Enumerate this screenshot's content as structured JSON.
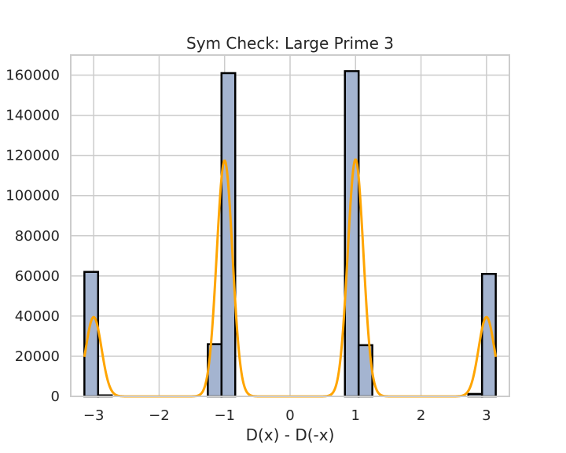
{
  "chart_data": {
    "type": "bar",
    "title": "Sym Check: Large Prime 3",
    "xlabel": "D(x) - D(-x)",
    "ylabel": "",
    "xlim": [
      -3.35,
      3.35
    ],
    "ylim": [
      0,
      170000
    ],
    "x_ticks": [
      -3,
      -2,
      -1,
      0,
      1,
      2,
      3
    ],
    "x_tick_labels": [
      "−3",
      "−2",
      "−1",
      "0",
      "1",
      "2",
      "3"
    ],
    "y_ticks": [
      0,
      20000,
      40000,
      60000,
      80000,
      100000,
      120000,
      140000,
      160000
    ],
    "y_tick_labels": [
      "0",
      "20000",
      "40000",
      "60000",
      "80000",
      "100000",
      "120000",
      "140000",
      "160000"
    ],
    "grid": true,
    "colors": {
      "bar_fill": "#a4b4d0",
      "bar_edge": "#000000",
      "kde_line": "#ffa500",
      "grid": "#cccccc",
      "spine": "#cccccc"
    },
    "histogram": {
      "bin_edges": [
        -3.1416,
        -2.9322,
        -2.7227,
        -2.5133,
        -2.3038,
        -2.0944,
        -1.885,
        -1.6755,
        -1.4661,
        -1.2566,
        -1.0472,
        -0.8378,
        -0.6283,
        -0.4189,
        -0.2094,
        0.0,
        0.2094,
        0.4189,
        0.6283,
        0.8378,
        1.0472,
        1.2566,
        1.4661,
        1.6755,
        1.885,
        2.0944,
        2.3038,
        2.5133,
        2.7227,
        2.9322,
        3.1416
      ],
      "counts": [
        62000,
        500,
        0,
        0,
        0,
        0,
        0,
        0,
        0,
        26000,
        161000,
        0,
        0,
        0,
        0,
        0,
        0,
        0,
        0,
        162000,
        25500,
        0,
        0,
        0,
        0,
        0,
        0,
        0,
        1200,
        61000
      ]
    },
    "kde": {
      "x_range": [
        -3.1416,
        3.1416
      ],
      "components": [
        {
          "center": -3.0,
          "peak": 39500,
          "sigma": 0.12
        },
        {
          "center": -1.0,
          "peak": 117500,
          "sigma": 0.12
        },
        {
          "center": 1.0,
          "peak": 118000,
          "sigma": 0.12
        },
        {
          "center": 3.0,
          "peak": 39500,
          "sigma": 0.12
        }
      ]
    }
  }
}
